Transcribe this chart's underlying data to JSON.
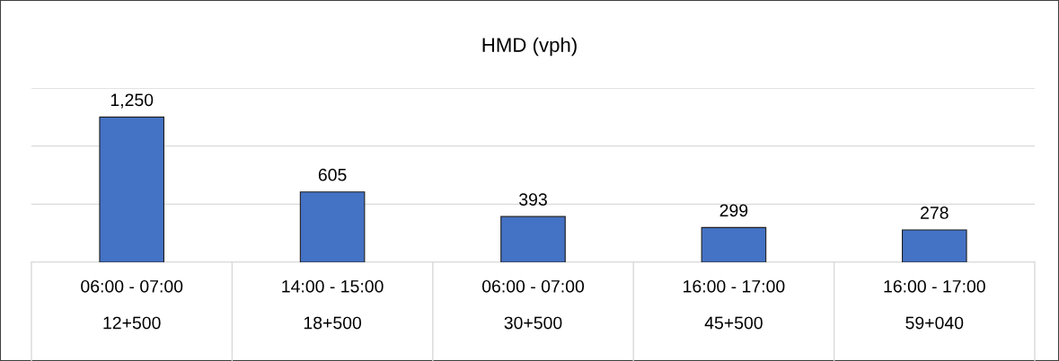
{
  "chart_data": {
    "type": "bar",
    "title": "HMD (vph)",
    "categories": [
      "06:00 - 07:00\n12+500",
      "14:00 - 15:00\n18+500",
      "06:00 - 07:00\n30+500",
      "16:00 - 17:00\n45+500",
      "16:00 - 17:00\n59+040"
    ],
    "values": [
      1250,
      605,
      393,
      299,
      278
    ],
    "color": "#4472c4",
    "ylim": [
      0,
      1500
    ],
    "yticks": [
      {
        "value": 0,
        "label": null
      },
      {
        "value": 500,
        "label": null
      },
      {
        "value": 1000,
        "label": null
      },
      {
        "value": 1500,
        "label": null
      }
    ],
    "value_labels": [
      "1,250",
      "605",
      "393",
      "299",
      "278"
    ],
    "grid": "y",
    "tick_labels": "x"
  }
}
